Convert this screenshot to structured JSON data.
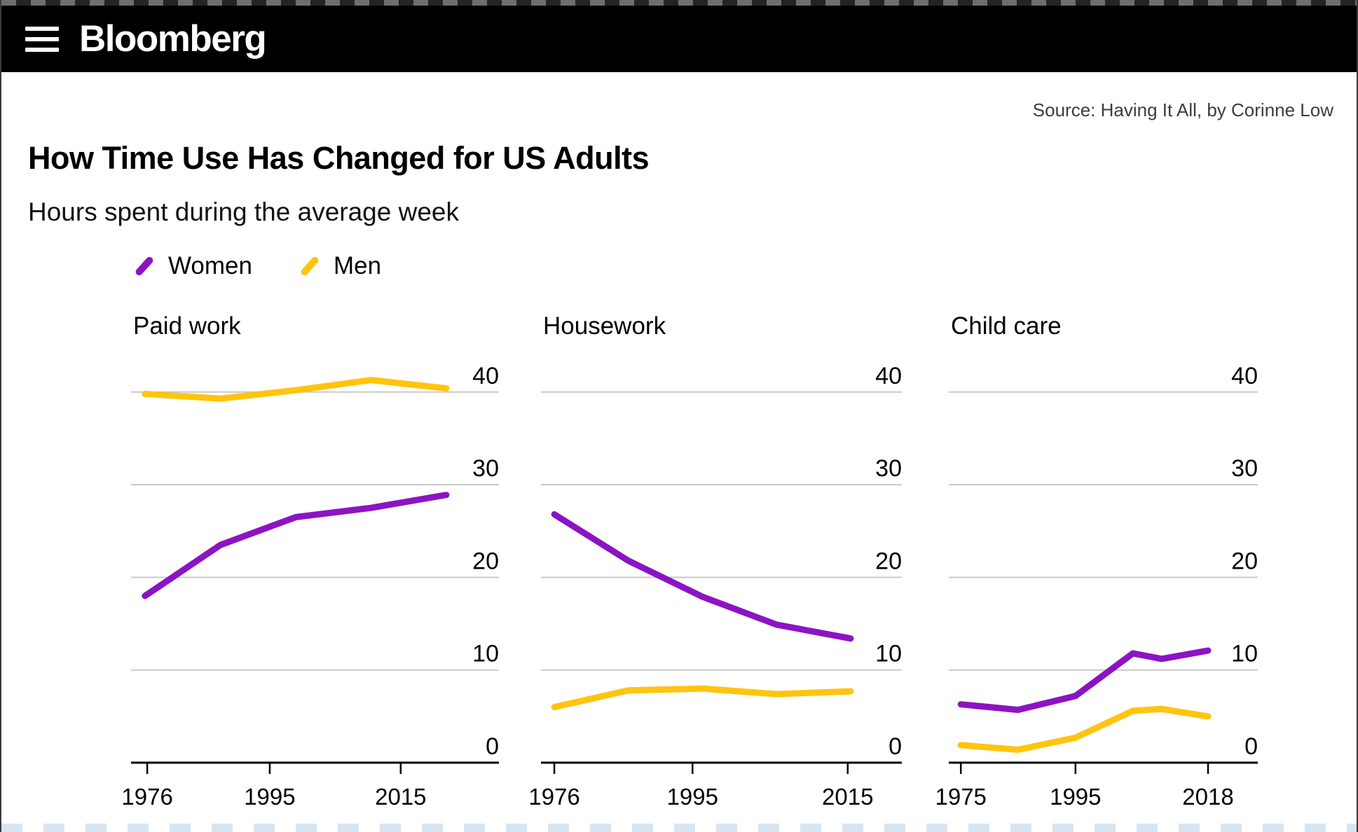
{
  "header": {
    "brand": "Bloomberg",
    "menu_icon": "hamburger-icon"
  },
  "source": "Source: Having It All, by Corinne Low",
  "title": "How Time Use Has Changed for US Adults",
  "subtitle": "Hours spent during the average week",
  "legend": [
    {
      "label": "Women",
      "color": "#8c13c4"
    },
    {
      "label": "Men",
      "color": "#ffc40e"
    }
  ],
  "colors": {
    "women": "#8c13c4",
    "men": "#ffc40e",
    "gridline": "#c9c9c9",
    "axis": "#000000",
    "header_bg": "#000000",
    "header_text": "#ffffff",
    "background": "#ffffff"
  },
  "chart_data": [
    {
      "type": "line",
      "title": "Paid work",
      "ylabel": "",
      "xlabel": "",
      "ylim": [
        0,
        44
      ],
      "yticks": [
        0,
        10,
        20,
        30,
        40
      ],
      "grid": "horizontal",
      "legend_position": "top-left-shared",
      "xticks": [
        {
          "label": "1976",
          "pos": 0.044
        },
        {
          "label": "1995",
          "pos": 0.377
        },
        {
          "label": "2015",
          "pos": 0.733
        }
      ],
      "series": [
        {
          "name": "Women",
          "color": "#8c13c4",
          "points": [
            {
              "x": 0.038,
              "y": 18.0
            },
            {
              "x": 0.243,
              "y": 23.5
            },
            {
              "x": 0.448,
              "y": 26.5
            },
            {
              "x": 0.652,
              "y": 27.5
            },
            {
              "x": 0.857,
              "y": 28.9
            }
          ]
        },
        {
          "name": "Men",
          "color": "#ffc40e",
          "points": [
            {
              "x": 0.038,
              "y": 39.8
            },
            {
              "x": 0.243,
              "y": 39.3
            },
            {
              "x": 0.448,
              "y": 40.2
            },
            {
              "x": 0.652,
              "y": 41.3
            },
            {
              "x": 0.857,
              "y": 40.4
            }
          ]
        }
      ]
    },
    {
      "type": "line",
      "title": "Housework",
      "ylabel": "",
      "xlabel": "",
      "ylim": [
        0,
        44
      ],
      "yticks": [
        0,
        10,
        20,
        30,
        40
      ],
      "grid": "horizontal",
      "legend_position": "top-left-shared",
      "xticks": [
        {
          "label": "1976",
          "pos": 0.037
        },
        {
          "label": "1995",
          "pos": 0.42
        },
        {
          "label": "2015",
          "pos": 0.85
        }
      ],
      "series": [
        {
          "name": "Women",
          "color": "#8c13c4",
          "points": [
            {
              "x": 0.037,
              "y": 26.8
            },
            {
              "x": 0.242,
              "y": 21.8
            },
            {
              "x": 0.448,
              "y": 17.9
            },
            {
              "x": 0.653,
              "y": 14.9
            },
            {
              "x": 0.858,
              "y": 13.4
            }
          ]
        },
        {
          "name": "Men",
          "color": "#ffc40e",
          "points": [
            {
              "x": 0.037,
              "y": 6.0
            },
            {
              "x": 0.242,
              "y": 7.8
            },
            {
              "x": 0.448,
              "y": 8.0
            },
            {
              "x": 0.653,
              "y": 7.4
            },
            {
              "x": 0.858,
              "y": 7.7
            }
          ]
        }
      ]
    },
    {
      "type": "line",
      "title": "Child care",
      "ylabel": "",
      "xlabel": "",
      "ylim": [
        0,
        44
      ],
      "yticks": [
        0,
        10,
        20,
        30,
        40
      ],
      "grid": "horizontal",
      "legend_position": "top-left-shared",
      "xticks": [
        {
          "label": "1975",
          "pos": 0.039
        },
        {
          "label": "1995",
          "pos": 0.41
        },
        {
          "label": "2018",
          "pos": 0.839
        }
      ],
      "series": [
        {
          "name": "Women",
          "color": "#8c13c4",
          "points": [
            {
              "x": 0.039,
              "y": 6.3
            },
            {
              "x": 0.224,
              "y": 5.7
            },
            {
              "x": 0.41,
              "y": 7.2
            },
            {
              "x": 0.596,
              "y": 11.8
            },
            {
              "x": 0.689,
              "y": 11.2
            },
            {
              "x": 0.839,
              "y": 12.1
            }
          ]
        },
        {
          "name": "Men",
          "color": "#ffc40e",
          "points": [
            {
              "x": 0.039,
              "y": 1.9
            },
            {
              "x": 0.224,
              "y": 1.4
            },
            {
              "x": 0.41,
              "y": 2.7
            },
            {
              "x": 0.596,
              "y": 5.6
            },
            {
              "x": 0.689,
              "y": 5.8
            },
            {
              "x": 0.839,
              "y": 5.0
            }
          ]
        }
      ]
    }
  ]
}
